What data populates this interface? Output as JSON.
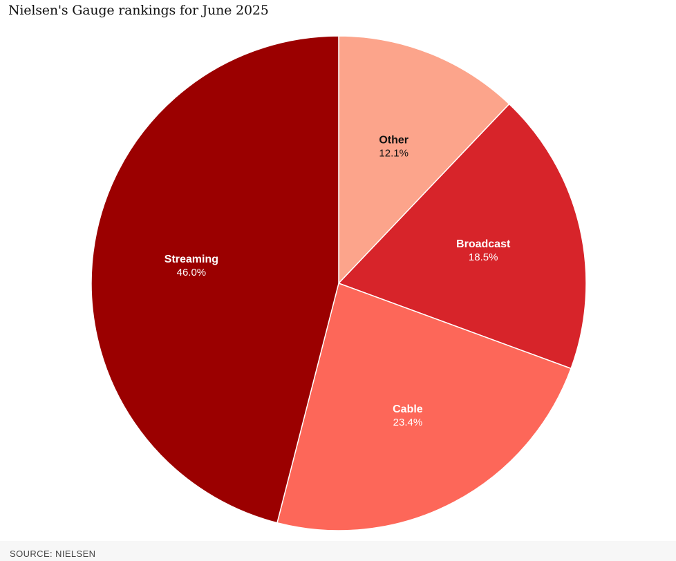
{
  "chart_data": {
    "type": "pie",
    "title": "Nielsen's Gauge rankings for June 2025",
    "slices": [
      {
        "name": "Other",
        "value": 12.1,
        "label": "12.1%",
        "color": "#fca48b",
        "text_color": "#111111"
      },
      {
        "name": "Broadcast",
        "value": 18.5,
        "label": "18.5%",
        "color": "#d7242a",
        "text_color": "#ffffff"
      },
      {
        "name": "Cable",
        "value": 23.4,
        "label": "23.4%",
        "color": "#fd6759",
        "text_color": "#ffffff"
      },
      {
        "name": "Streaming",
        "value": 46.0,
        "label": "46.0%",
        "color": "#9b0000",
        "text_color": "#ffffff"
      }
    ],
    "start": "12 o'clock",
    "direction": "clockwise",
    "legend": "none",
    "source": "SOURCE: NIELSEN"
  }
}
